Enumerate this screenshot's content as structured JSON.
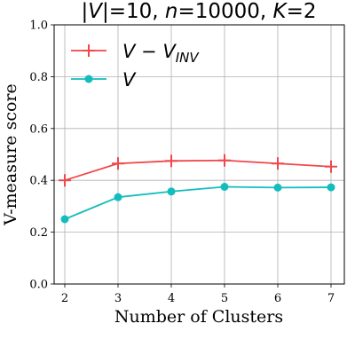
{
  "chart_data": {
    "type": "line",
    "title_parts": [
      {
        "text": "|",
        "italic": false
      },
      {
        "text": "V",
        "italic": true
      },
      {
        "text": "|=10, ",
        "italic": false
      },
      {
        "text": "n",
        "italic": true
      },
      {
        "text": "=10000, ",
        "italic": false
      },
      {
        "text": "K",
        "italic": true
      },
      {
        "text": "=2",
        "italic": false
      }
    ],
    "xlabel": "Number of Clusters",
    "ylabel": "V-measure score",
    "x": [
      2,
      3,
      4,
      5,
      6,
      7
    ],
    "xticks": [
      "2",
      "3",
      "4",
      "5",
      "6",
      "7"
    ],
    "yticks": [
      "0.0",
      "0.2",
      "0.4",
      "0.6",
      "0.8",
      "1.0"
    ],
    "xlim": [
      1.8,
      7.25
    ],
    "ylim": [
      0.0,
      1.0
    ],
    "grid": true,
    "legend_position": "top-left",
    "series": [
      {
        "name": "V - V_INV",
        "legend_main": "V",
        "legend_rest": " − V",
        "legend_sub": "INV",
        "values": [
          0.4,
          0.465,
          0.475,
          0.477,
          0.465,
          0.453
        ],
        "color": "#f0474a",
        "marker": "plus"
      },
      {
        "name": "V",
        "legend_main": "V",
        "legend_rest": "",
        "legend_sub": "",
        "values": [
          0.25,
          0.335,
          0.357,
          0.375,
          0.372,
          0.373
        ],
        "color": "#13bdbd",
        "marker": "circle"
      }
    ]
  }
}
